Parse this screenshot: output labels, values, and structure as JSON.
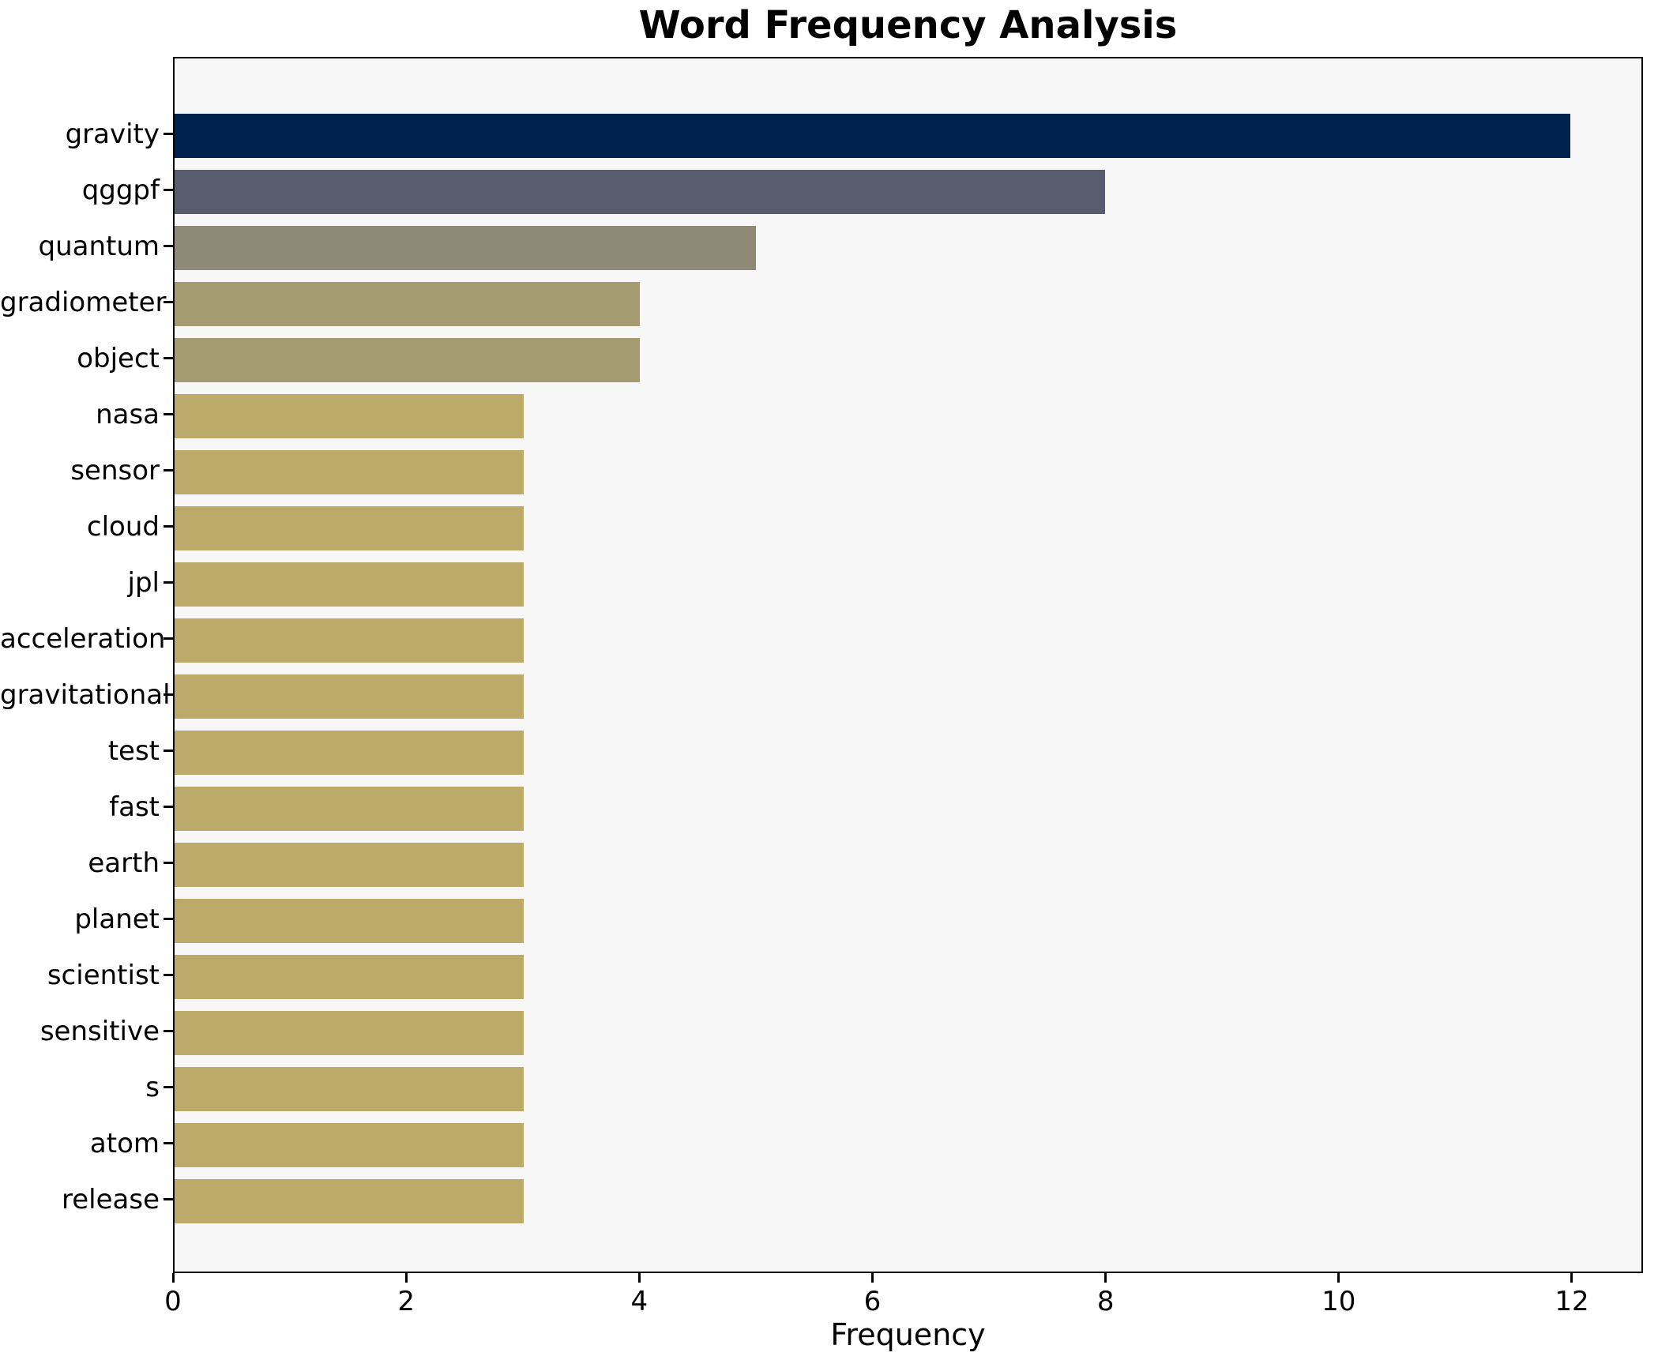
{
  "title": "Word Frequency Analysis",
  "x_axis_label": "Frequency",
  "chart_data": {
    "type": "bar",
    "orientation": "horizontal",
    "title": "Word Frequency Analysis",
    "xlabel": "Frequency",
    "ylabel": "",
    "grid": false,
    "legend": false,
    "plot_background": "#f7f7f7",
    "figure_background": "#ffffff",
    "spine_color": "#000000",
    "xlim": [
      0,
      12.61
    ],
    "x_ticks": [
      0,
      2,
      4,
      6,
      8,
      10,
      12
    ],
    "categories": [
      "gravity",
      "qggpf",
      "quantum",
      "gradiometer",
      "object",
      "nasa",
      "sensor",
      "cloud",
      "jpl",
      "acceleration",
      "gravitational",
      "test",
      "fast",
      "earth",
      "planet",
      "scientist",
      "sensitive",
      "s",
      "atom",
      "release"
    ],
    "values": [
      12,
      8,
      5,
      4,
      4,
      3,
      3,
      3,
      3,
      3,
      3,
      3,
      3,
      3,
      3,
      3,
      3,
      3,
      3,
      3
    ],
    "bar_colors": [
      "#00224e",
      "#575d6d",
      "#8f8978",
      "#a49b71",
      "#a49b71",
      "#bcaa6a",
      "#bcaa6a",
      "#bcaa6a",
      "#bcaa6a",
      "#bcaa6a",
      "#bcaa6a",
      "#bcaa6a",
      "#bcaa6a",
      "#bcaa6a",
      "#bcaa6a",
      "#bcaa6a",
      "#bcaa6a",
      "#bcaa6a",
      "#bcaa6a",
      "#bcaa6a"
    ]
  }
}
